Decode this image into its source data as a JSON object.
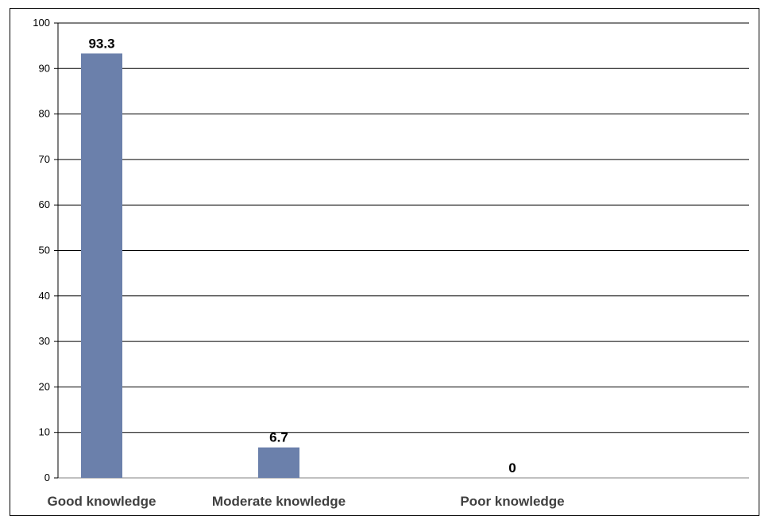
{
  "chart_data": {
    "type": "bar",
    "title": "",
    "xlabel": "",
    "ylabel": "",
    "categories": [
      "Good knowledge",
      "Moderate knowledge",
      "Poor knowledge"
    ],
    "values": [
      93.3,
      6.7,
      0
    ],
    "data_labels": [
      "93.3",
      "6.7",
      "0"
    ],
    "ylim": [
      0,
      100
    ],
    "yticks": [
      "0",
      "10",
      "20",
      "30",
      "40",
      "50",
      "60",
      "70",
      "80",
      "90",
      "100"
    ],
    "grid": true,
    "legend": "none",
    "colors": {
      "bar": "#6b80ab",
      "grid": "#000000",
      "axis": "#000000"
    }
  }
}
